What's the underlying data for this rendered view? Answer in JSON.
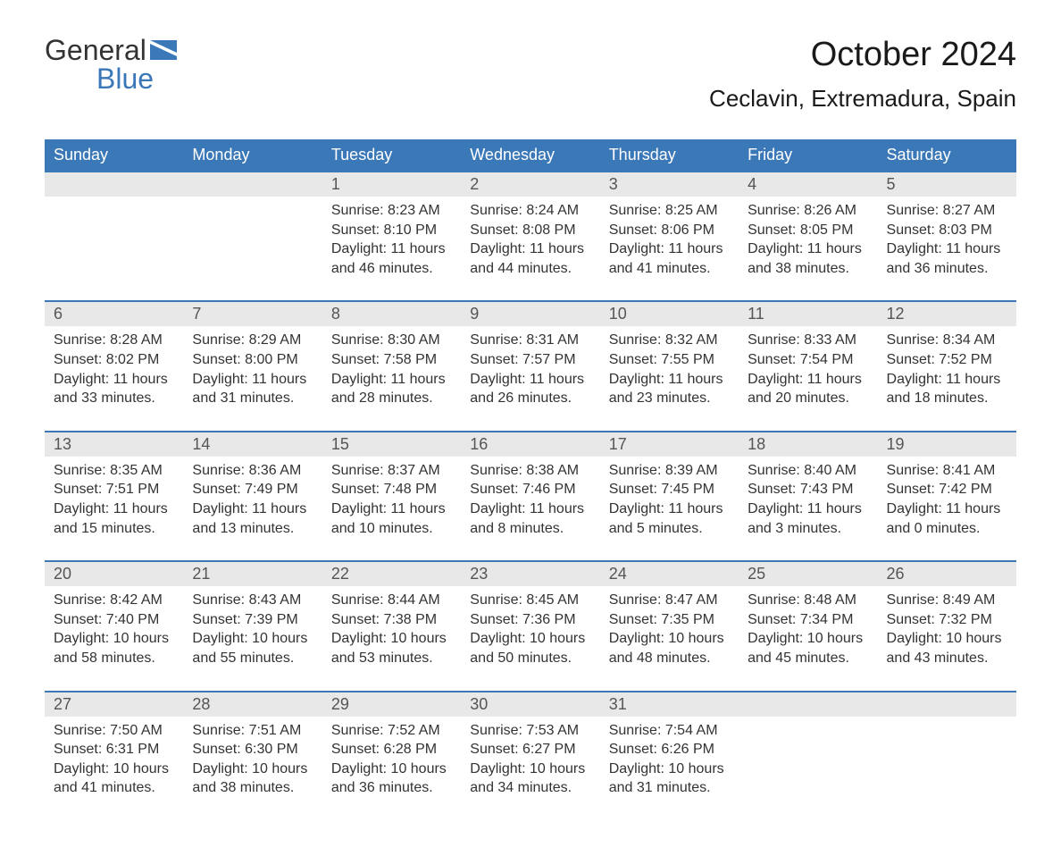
{
  "logo": {
    "text_top": "General",
    "text_bottom": "Blue",
    "flag_color": "#3b78b8",
    "text_top_color": "#333333",
    "text_bottom_color": "#3b78b8"
  },
  "title": "October 2024",
  "location": "Ceclavin, Extremadura, Spain",
  "colors": {
    "header_bg": "#3b78b8",
    "header_text": "#ffffff",
    "daynum_bg": "#e8e8e8",
    "daynum_text": "#555555",
    "body_text": "#333333",
    "border": "#3b78b8",
    "background": "#ffffff"
  },
  "day_headers": [
    "Sunday",
    "Monday",
    "Tuesday",
    "Wednesday",
    "Thursday",
    "Friday",
    "Saturday"
  ],
  "weeks": [
    [
      null,
      null,
      {
        "n": "1",
        "sunrise": "8:23 AM",
        "sunset": "8:10 PM",
        "daylight": "11 hours and 46 minutes."
      },
      {
        "n": "2",
        "sunrise": "8:24 AM",
        "sunset": "8:08 PM",
        "daylight": "11 hours and 44 minutes."
      },
      {
        "n": "3",
        "sunrise": "8:25 AM",
        "sunset": "8:06 PM",
        "daylight": "11 hours and 41 minutes."
      },
      {
        "n": "4",
        "sunrise": "8:26 AM",
        "sunset": "8:05 PM",
        "daylight": "11 hours and 38 minutes."
      },
      {
        "n": "5",
        "sunrise": "8:27 AM",
        "sunset": "8:03 PM",
        "daylight": "11 hours and 36 minutes."
      }
    ],
    [
      {
        "n": "6",
        "sunrise": "8:28 AM",
        "sunset": "8:02 PM",
        "daylight": "11 hours and 33 minutes."
      },
      {
        "n": "7",
        "sunrise": "8:29 AM",
        "sunset": "8:00 PM",
        "daylight": "11 hours and 31 minutes."
      },
      {
        "n": "8",
        "sunrise": "8:30 AM",
        "sunset": "7:58 PM",
        "daylight": "11 hours and 28 minutes."
      },
      {
        "n": "9",
        "sunrise": "8:31 AM",
        "sunset": "7:57 PM",
        "daylight": "11 hours and 26 minutes."
      },
      {
        "n": "10",
        "sunrise": "8:32 AM",
        "sunset": "7:55 PM",
        "daylight": "11 hours and 23 minutes."
      },
      {
        "n": "11",
        "sunrise": "8:33 AM",
        "sunset": "7:54 PM",
        "daylight": "11 hours and 20 minutes."
      },
      {
        "n": "12",
        "sunrise": "8:34 AM",
        "sunset": "7:52 PM",
        "daylight": "11 hours and 18 minutes."
      }
    ],
    [
      {
        "n": "13",
        "sunrise": "8:35 AM",
        "sunset": "7:51 PM",
        "daylight": "11 hours and 15 minutes."
      },
      {
        "n": "14",
        "sunrise": "8:36 AM",
        "sunset": "7:49 PM",
        "daylight": "11 hours and 13 minutes."
      },
      {
        "n": "15",
        "sunrise": "8:37 AM",
        "sunset": "7:48 PM",
        "daylight": "11 hours and 10 minutes."
      },
      {
        "n": "16",
        "sunrise": "8:38 AM",
        "sunset": "7:46 PM",
        "daylight": "11 hours and 8 minutes."
      },
      {
        "n": "17",
        "sunrise": "8:39 AM",
        "sunset": "7:45 PM",
        "daylight": "11 hours and 5 minutes."
      },
      {
        "n": "18",
        "sunrise": "8:40 AM",
        "sunset": "7:43 PM",
        "daylight": "11 hours and 3 minutes."
      },
      {
        "n": "19",
        "sunrise": "8:41 AM",
        "sunset": "7:42 PM",
        "daylight": "11 hours and 0 minutes."
      }
    ],
    [
      {
        "n": "20",
        "sunrise": "8:42 AM",
        "sunset": "7:40 PM",
        "daylight": "10 hours and 58 minutes."
      },
      {
        "n": "21",
        "sunrise": "8:43 AM",
        "sunset": "7:39 PM",
        "daylight": "10 hours and 55 minutes."
      },
      {
        "n": "22",
        "sunrise": "8:44 AM",
        "sunset": "7:38 PM",
        "daylight": "10 hours and 53 minutes."
      },
      {
        "n": "23",
        "sunrise": "8:45 AM",
        "sunset": "7:36 PM",
        "daylight": "10 hours and 50 minutes."
      },
      {
        "n": "24",
        "sunrise": "8:47 AM",
        "sunset": "7:35 PM",
        "daylight": "10 hours and 48 minutes."
      },
      {
        "n": "25",
        "sunrise": "8:48 AM",
        "sunset": "7:34 PM",
        "daylight": "10 hours and 45 minutes."
      },
      {
        "n": "26",
        "sunrise": "8:49 AM",
        "sunset": "7:32 PM",
        "daylight": "10 hours and 43 minutes."
      }
    ],
    [
      {
        "n": "27",
        "sunrise": "7:50 AM",
        "sunset": "6:31 PM",
        "daylight": "10 hours and 41 minutes."
      },
      {
        "n": "28",
        "sunrise": "7:51 AM",
        "sunset": "6:30 PM",
        "daylight": "10 hours and 38 minutes."
      },
      {
        "n": "29",
        "sunrise": "7:52 AM",
        "sunset": "6:28 PM",
        "daylight": "10 hours and 36 minutes."
      },
      {
        "n": "30",
        "sunrise": "7:53 AM",
        "sunset": "6:27 PM",
        "daylight": "10 hours and 34 minutes."
      },
      {
        "n": "31",
        "sunrise": "7:54 AM",
        "sunset": "6:26 PM",
        "daylight": "10 hours and 31 minutes."
      },
      null,
      null
    ]
  ],
  "labels": {
    "sunrise": "Sunrise:",
    "sunset": "Sunset:",
    "daylight": "Daylight:"
  }
}
